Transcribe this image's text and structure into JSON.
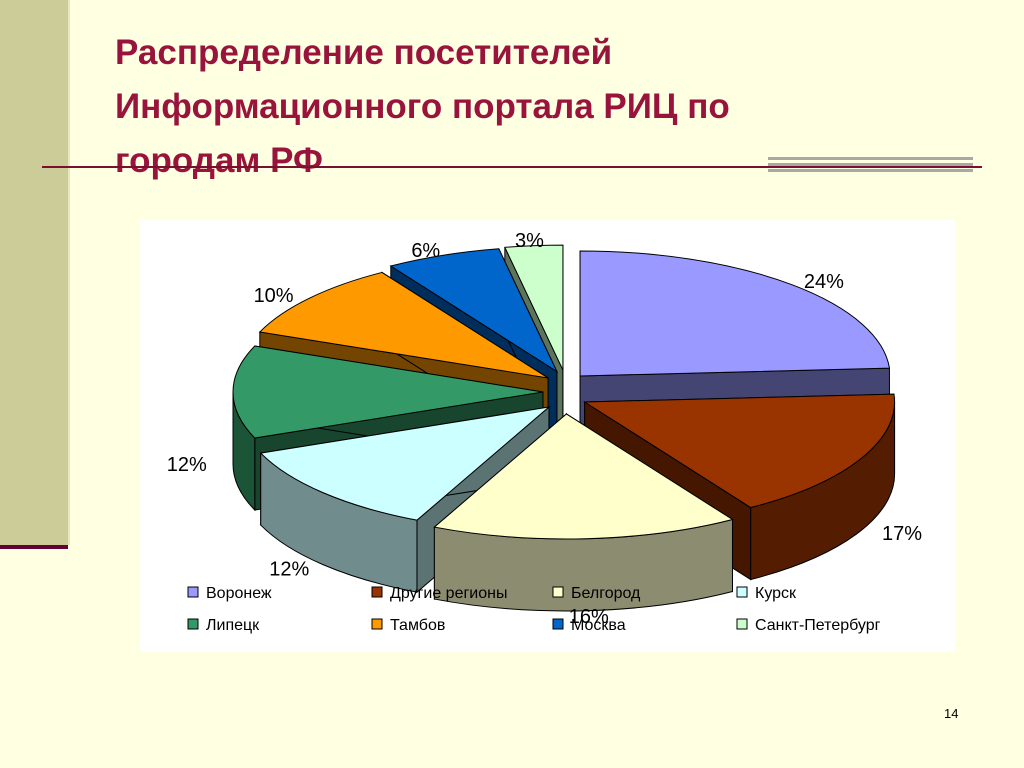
{
  "slide": {
    "title": "Распределение посетителей Информационного портала РИЦ по городам РФ",
    "page_number": "14"
  },
  "chart_data": {
    "type": "pie",
    "style": "3d-exploded",
    "legend_position": "bottom",
    "categories": [
      "Воронеж",
      "Другие регионы",
      "Белгород",
      "Курск",
      "Липецк",
      "Тамбов",
      "Москва",
      "Санкт-Петербург"
    ],
    "values": [
      24,
      17,
      16,
      12,
      12,
      10,
      6,
      3
    ],
    "labels": [
      "24%",
      "17%",
      "16%",
      "12%",
      "12%",
      "10%",
      "6%",
      "3%"
    ],
    "colors": [
      "#9999FF",
      "#993300",
      "#FFFFCC",
      "#CCFFFF",
      "#339966",
      "#FF9900",
      "#0066CC",
      "#CCFFCC"
    ]
  }
}
